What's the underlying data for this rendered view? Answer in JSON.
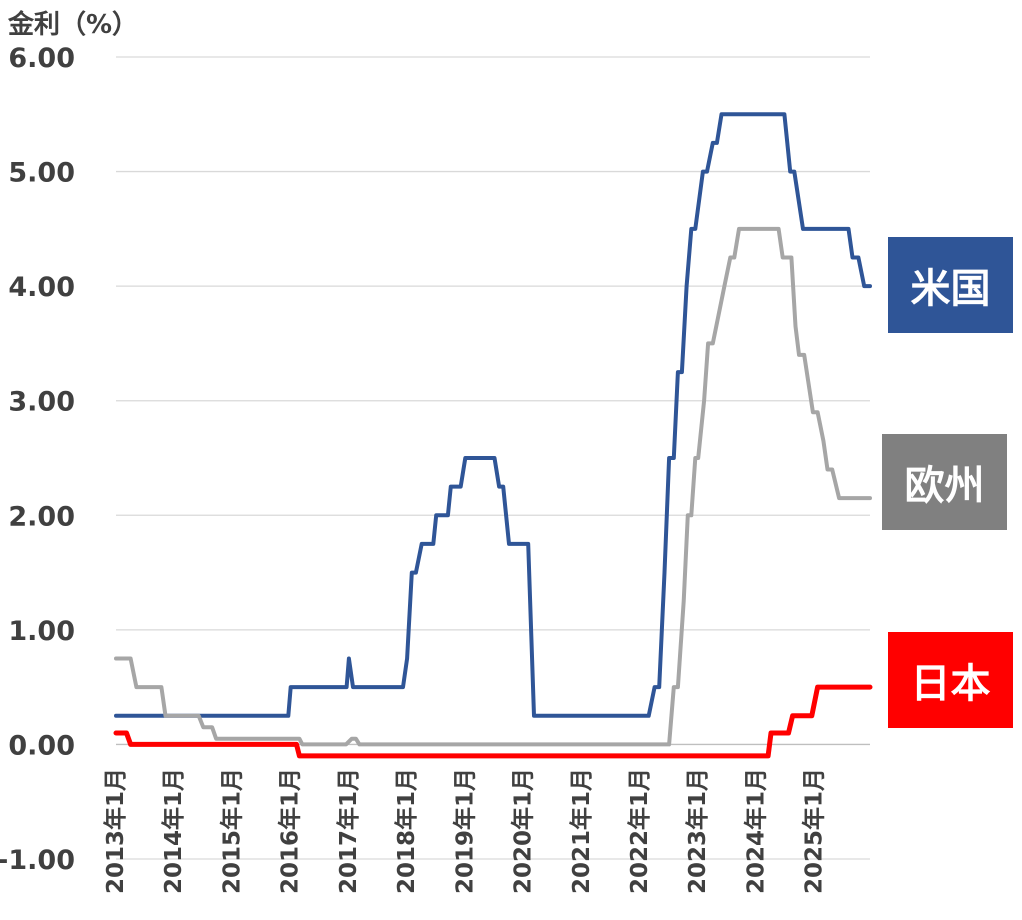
{
  "chart_data": {
    "type": "line",
    "ylabel": "金利（%）",
    "ylim": [
      -1.0,
      6.0
    ],
    "yticks": [
      "6.00",
      "5.00",
      "4.00",
      "3.00",
      "2.00",
      "1.00",
      "0.00",
      "-1.00"
    ],
    "ytick_values": [
      6,
      5,
      4,
      3,
      2,
      1,
      0,
      -1
    ],
    "xlim": [
      2013.0,
      2025.95
    ],
    "xticks": [
      "2013年1月",
      "2014年1月",
      "2015年1月",
      "2016年1月",
      "2017年1月",
      "2018年1月",
      "2019年1月",
      "2020年1月",
      "2021年1月",
      "2022年1月",
      "2023年1月",
      "2024年1月",
      "2025年1月"
    ],
    "xtick_values": [
      2013,
      2014,
      2015,
      2016,
      2017,
      2018,
      2019,
      2020,
      2021,
      2022,
      2023,
      2024,
      2025
    ],
    "grid": true,
    "legend_placement": "right, direct labels",
    "series": [
      {
        "name": "米国",
        "color": "#2F5597",
        "points": [
          [
            2013.0,
            0.25
          ],
          [
            2015.96,
            0.25
          ],
          [
            2016.0,
            0.5
          ],
          [
            2016.96,
            0.5
          ],
          [
            2017.0,
            0.75
          ],
          [
            2017.07,
            0.5
          ],
          [
            2017.93,
            0.5
          ],
          [
            2018.0,
            0.75
          ],
          [
            2018.08,
            1.5
          ],
          [
            2018.15,
            1.5
          ],
          [
            2018.25,
            1.75
          ],
          [
            2018.45,
            1.75
          ],
          [
            2018.5,
            2.0
          ],
          [
            2018.7,
            2.0
          ],
          [
            2018.75,
            2.25
          ],
          [
            2018.92,
            2.25
          ],
          [
            2019.0,
            2.5
          ],
          [
            2019.5,
            2.5
          ],
          [
            2019.58,
            2.25
          ],
          [
            2019.65,
            2.25
          ],
          [
            2019.75,
            1.75
          ],
          [
            2020.08,
            1.75
          ],
          [
            2020.18,
            0.25
          ],
          [
            2022.15,
            0.25
          ],
          [
            2022.25,
            0.5
          ],
          [
            2022.33,
            0.5
          ],
          [
            2022.42,
            1.5
          ],
          [
            2022.5,
            2.5
          ],
          [
            2022.58,
            2.5
          ],
          [
            2022.65,
            3.25
          ],
          [
            2022.72,
            3.25
          ],
          [
            2022.8,
            4.0
          ],
          [
            2022.88,
            4.5
          ],
          [
            2022.95,
            4.5
          ],
          [
            2023.08,
            5.0
          ],
          [
            2023.15,
            5.0
          ],
          [
            2023.25,
            5.25
          ],
          [
            2023.32,
            5.25
          ],
          [
            2023.4,
            5.5
          ],
          [
            2024.48,
            5.5
          ],
          [
            2024.58,
            5.0
          ],
          [
            2024.65,
            5.0
          ],
          [
            2024.8,
            4.5
          ],
          [
            2025.58,
            4.5
          ],
          [
            2025.65,
            4.25
          ],
          [
            2025.75,
            4.25
          ],
          [
            2025.85,
            4.0
          ],
          [
            2025.95,
            4.0
          ]
        ]
      },
      {
        "name": "欧州",
        "color": "#A6A6A6",
        "points": [
          [
            2013.0,
            0.75
          ],
          [
            2013.25,
            0.75
          ],
          [
            2013.35,
            0.5
          ],
          [
            2013.78,
            0.5
          ],
          [
            2013.85,
            0.25
          ],
          [
            2014.42,
            0.25
          ],
          [
            2014.5,
            0.15
          ],
          [
            2014.65,
            0.15
          ],
          [
            2014.72,
            0.05
          ],
          [
            2016.15,
            0.05
          ],
          [
            2016.2,
            0.0
          ],
          [
            2016.95,
            0.0
          ],
          [
            2017.05,
            0.05
          ],
          [
            2017.12,
            0.05
          ],
          [
            2017.18,
            0.0
          ],
          [
            2022.5,
            0.0
          ],
          [
            2022.58,
            0.5
          ],
          [
            2022.65,
            0.5
          ],
          [
            2022.75,
            1.25
          ],
          [
            2022.82,
            2.0
          ],
          [
            2022.88,
            2.0
          ],
          [
            2022.95,
            2.5
          ],
          [
            2023.0,
            2.5
          ],
          [
            2023.1,
            3.0
          ],
          [
            2023.17,
            3.5
          ],
          [
            2023.25,
            3.5
          ],
          [
            2023.35,
            3.75
          ],
          [
            2023.45,
            4.0
          ],
          [
            2023.55,
            4.25
          ],
          [
            2023.62,
            4.25
          ],
          [
            2023.7,
            4.5
          ],
          [
            2024.38,
            4.5
          ],
          [
            2024.45,
            4.25
          ],
          [
            2024.6,
            4.25
          ],
          [
            2024.67,
            3.65
          ],
          [
            2024.73,
            3.4
          ],
          [
            2024.82,
            3.4
          ],
          [
            2024.97,
            2.9
          ],
          [
            2025.05,
            2.9
          ],
          [
            2025.15,
            2.65
          ],
          [
            2025.22,
            2.4
          ],
          [
            2025.3,
            2.4
          ],
          [
            2025.42,
            2.15
          ],
          [
            2025.95,
            2.15
          ]
        ]
      },
      {
        "name": "日本",
        "color": "#FF0000",
        "points": [
          [
            2013.0,
            0.1
          ],
          [
            2013.18,
            0.1
          ],
          [
            2013.25,
            0.0
          ],
          [
            2016.1,
            0.0
          ],
          [
            2016.15,
            -0.1
          ],
          [
            2024.2,
            -0.1
          ],
          [
            2024.25,
            0.1
          ],
          [
            2024.55,
            0.1
          ],
          [
            2024.62,
            0.25
          ],
          [
            2024.95,
            0.25
          ],
          [
            2025.05,
            0.5
          ],
          [
            2025.95,
            0.5
          ]
        ]
      }
    ]
  }
}
